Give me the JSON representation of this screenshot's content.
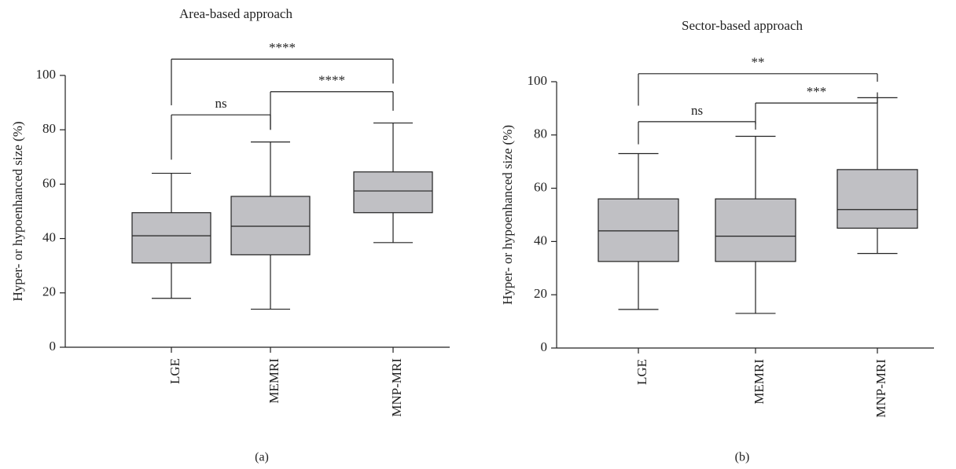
{
  "chart_data": [
    {
      "type": "box",
      "panel_label": "(a)",
      "title": "Area-based approach",
      "ylabel": "Hyper- or hypoenhanced size (%)",
      "ylim": [
        0,
        100
      ],
      "yticks": [
        0,
        20,
        40,
        60,
        80,
        100
      ],
      "categories": [
        "LGE",
        "MEMRI",
        "MNP-MRI"
      ],
      "boxes": [
        {
          "category": "LGE",
          "min": 18,
          "q1": 31,
          "median": 41,
          "q3": 49.5,
          "max": 64
        },
        {
          "category": "MEMRI",
          "min": 14,
          "q1": 34,
          "median": 44.5,
          "q3": 55.5,
          "max": 75.5
        },
        {
          "category": "MNP-MRI",
          "min": 38.5,
          "q1": 49.5,
          "median": 57.5,
          "q3": 64.5,
          "max": 82.5
        }
      ],
      "significance": [
        {
          "from": 0,
          "to": 1,
          "label": "ns",
          "bracket_y": 85.5,
          "start_y": [
            69,
            80
          ]
        },
        {
          "from": 1,
          "to": 2,
          "label": "****",
          "bracket_y": 94,
          "start_y": [
            80,
            87
          ]
        },
        {
          "from": 0,
          "to": 2,
          "label": "****",
          "bracket_y": 106,
          "start_y": [
            89,
            97
          ]
        }
      ]
    },
    {
      "type": "box",
      "panel_label": "(b)",
      "title": "Sector-based approach",
      "ylabel": "Hyper- or hypoenhanced size (%)",
      "ylim": [
        0,
        100
      ],
      "yticks": [
        0,
        20,
        40,
        60,
        80,
        100
      ],
      "categories": [
        "LGE",
        "MEMRI",
        "MNP-MRI"
      ],
      "boxes": [
        {
          "category": "LGE",
          "min": 14.5,
          "q1": 32.5,
          "median": 44,
          "q3": 56,
          "max": 73
        },
        {
          "category": "MEMRI",
          "min": 13,
          "q1": 32.5,
          "median": 42,
          "q3": 56,
          "max": 79.5
        },
        {
          "category": "MNP-MRI",
          "min": 35.5,
          "q1": 45,
          "median": 52,
          "q3": 67,
          "max": 94
        }
      ],
      "significance": [
        {
          "from": 0,
          "to": 1,
          "label": "ns",
          "bracket_y": 85,
          "start_y": [
            76.5,
            82
          ]
        },
        {
          "from": 1,
          "to": 2,
          "label": "***",
          "bracket_y": 92,
          "start_y": [
            84,
            96
          ]
        },
        {
          "from": 0,
          "to": 2,
          "label": "**",
          "bracket_y": 103,
          "start_y": [
            91,
            100
          ]
        }
      ]
    }
  ]
}
